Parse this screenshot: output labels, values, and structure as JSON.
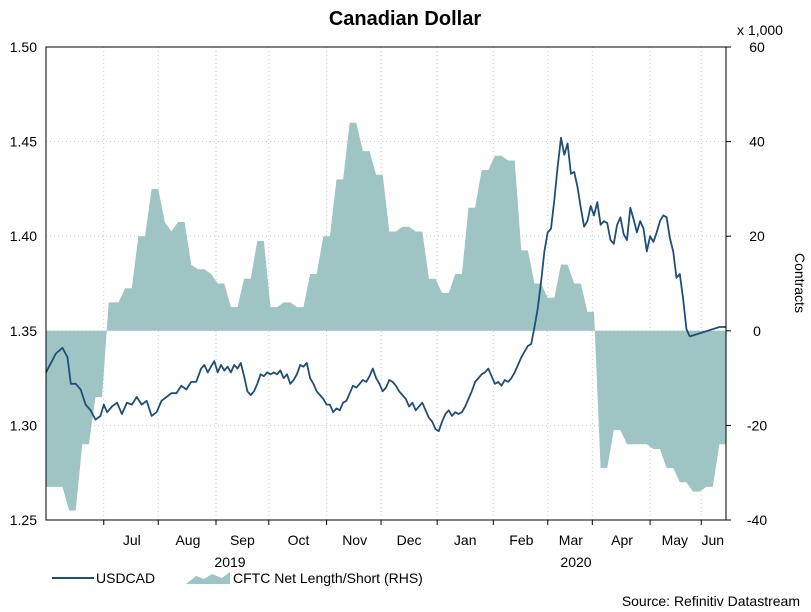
{
  "chart_data": {
    "type": "line+area",
    "title": "Canadian Dollar",
    "source": "Source: Refinitiv Datastream",
    "x_axis": {
      "months": [
        "Jul",
        "Aug",
        "Sep",
        "Oct",
        "Nov",
        "Dec",
        "Jan",
        "Feb",
        "Mar",
        "Apr",
        "May",
        "Jun"
      ],
      "years": [
        "2019",
        "2020"
      ]
    },
    "y_left": {
      "min": 1.25,
      "max": 1.5,
      "ticks": [
        "1.25",
        "1.30",
        "1.35",
        "1.40",
        "1.45",
        "1.50"
      ]
    },
    "y_right": {
      "min": -40,
      "max": 60,
      "ticks": [
        "-40",
        "-20",
        "0",
        "20",
        "40",
        "60"
      ],
      "unit_label": "x 1,000",
      "label": "Contracts"
    },
    "legend": {
      "line_label": "USDCAD",
      "area_label": "CFTC Net Length/Short (RHS)"
    },
    "colors": {
      "line": "#1f4e79",
      "area": "#9ec4c4",
      "grid": "#c8c8c8"
    },
    "series": [
      {
        "name": "USDCAD",
        "axis": "left",
        "t": [
          0,
          1,
          2,
          3,
          4,
          5,
          6,
          7,
          8,
          9,
          10,
          11,
          12,
          13,
          14,
          15,
          16,
          17,
          18,
          19,
          20,
          21,
          22,
          23,
          24,
          25,
          26,
          27,
          28,
          29,
          30,
          31,
          32,
          33,
          34,
          35,
          36,
          37,
          38,
          39,
          40,
          41,
          42,
          43,
          44,
          45,
          46,
          47,
          48,
          49,
          50,
          51,
          52,
          53,
          54,
          55,
          56,
          57,
          58,
          59,
          60,
          61,
          62,
          63,
          64,
          65,
          66,
          67,
          68,
          69,
          70,
          71,
          72,
          73,
          74,
          75,
          76,
          77,
          78,
          79,
          80,
          81,
          82,
          83,
          84,
          85,
          86,
          87,
          88,
          89,
          90,
          91,
          92,
          93,
          94,
          95,
          96,
          97,
          98,
          99,
          100,
          101,
          102,
          103,
          104,
          105,
          106,
          107,
          108,
          109,
          110,
          111,
          112,
          113,
          114,
          115,
          116,
          117,
          118,
          119,
          120,
          121,
          122,
          123,
          124,
          125,
          126,
          127,
          128,
          129,
          130,
          131,
          132,
          133,
          134,
          135,
          136,
          137,
          138,
          139,
          140,
          141,
          142,
          143,
          144,
          145,
          146,
          147,
          148,
          149,
          150,
          151,
          152,
          153,
          154,
          155,
          156,
          157,
          158,
          159,
          160,
          161,
          162,
          163,
          164,
          165,
          166,
          167,
          168,
          169,
          170,
          171,
          172,
          173,
          174,
          175,
          176,
          177,
          178,
          179,
          180,
          181,
          182,
          183,
          184,
          185,
          186,
          187,
          188,
          189,
          190,
          191,
          192,
          193,
          194,
          195,
          196,
          197,
          198,
          199,
          200,
          201,
          202,
          203,
          204,
          205,
          206,
          207,
          208,
          209,
          210,
          211,
          212,
          213,
          214,
          215,
          216,
          217,
          218,
          219,
          220,
          221,
          222,
          223,
          224,
          225,
          226,
          227,
          228,
          229,
          230,
          231,
          232,
          233,
          234,
          235,
          236,
          237,
          238,
          239,
          240,
          241,
          242,
          243,
          244,
          245,
          246,
          247,
          248,
          249,
          250,
          251,
          252,
          253,
          254,
          255,
          256,
          257,
          258,
          259,
          260,
          261,
          262,
          263,
          264,
          265,
          266,
          267,
          268,
          269,
          270,
          271,
          272,
          273,
          274,
          275,
          276,
          277,
          278,
          279,
          280,
          281,
          282,
          283,
          284,
          285,
          286,
          287,
          288,
          289,
          290,
          291,
          292,
          293,
          294,
          295,
          296,
          297,
          298,
          299,
          300,
          301,
          302,
          303,
          304,
          305,
          306,
          307,
          308,
          309,
          310,
          311,
          312,
          313,
          314,
          315,
          316,
          317,
          318,
          319,
          320,
          321,
          322,
          323,
          324,
          325,
          326,
          327,
          328,
          329,
          330,
          331,
          332,
          333,
          334,
          335,
          336,
          337,
          338,
          339,
          340,
          341,
          342,
          343,
          344,
          345,
          346,
          347,
          348,
          349,
          350,
          351,
          352,
          353,
          354,
          355,
          356,
          357,
          358,
          359,
          360,
          361,
          362,
          363,
          364,
          365,
          366,
          367,
          368,
          369,
          370,
          371,
          372,
          373,
          374,
          375,
          376,
          377,
          378,
          379,
          380,
          381,
          382,
          383,
          384,
          385,
          386,
          387,
          388,
          389,
          390
        ],
        "values": []
      },
      {
        "name": "CFTC Net Length/Short (RHS)",
        "axis": "right",
        "values": []
      }
    ],
    "usdcad": [
      [
        0,
        1.328
      ],
      [
        6,
        1.338
      ],
      [
        10,
        1.341
      ],
      [
        13,
        1.336
      ],
      [
        15,
        1.322
      ],
      [
        18,
        1.322
      ],
      [
        21,
        1.319
      ],
      [
        24,
        1.311
      ],
      [
        27,
        1.308
      ],
      [
        30,
        1.303
      ],
      [
        33,
        1.305
      ],
      [
        35,
        1.311
      ],
      [
        37,
        1.307
      ],
      [
        40,
        1.31
      ],
      [
        43,
        1.312
      ],
      [
        46,
        1.306
      ],
      [
        49,
        1.312
      ],
      [
        52,
        1.311
      ],
      [
        55,
        1.315
      ],
      [
        58,
        1.311
      ],
      [
        61,
        1.313
      ],
      [
        64,
        1.305
      ],
      [
        67,
        1.307
      ],
      [
        70,
        1.313
      ],
      [
        73,
        1.315
      ],
      [
        76,
        1.317
      ],
      [
        79,
        1.317
      ],
      [
        82,
        1.321
      ],
      [
        85,
        1.319
      ],
      [
        88,
        1.323
      ],
      [
        91,
        1.323
      ],
      [
        94,
        1.33
      ],
      [
        96,
        1.332
      ],
      [
        98,
        1.328
      ],
      [
        100,
        1.331
      ],
      [
        102,
        1.334
      ],
      [
        104,
        1.328
      ],
      [
        106,
        1.332
      ],
      [
        108,
        1.329
      ],
      [
        110,
        1.331
      ],
      [
        112,
        1.328
      ],
      [
        114,
        1.332
      ],
      [
        116,
        1.33
      ],
      [
        118,
        1.333
      ],
      [
        120,
        1.326
      ],
      [
        122,
        1.318
      ],
      [
        124,
        1.316
      ],
      [
        126,
        1.318
      ],
      [
        128,
        1.322
      ],
      [
        130,
        1.327
      ],
      [
        132,
        1.326
      ],
      [
        134,
        1.328
      ],
      [
        136,
        1.327
      ],
      [
        138,
        1.328
      ],
      [
        140,
        1.327
      ],
      [
        142,
        1.329
      ],
      [
        144,
        1.325
      ],
      [
        146,
        1.327
      ],
      [
        148,
        1.322
      ],
      [
        150,
        1.324
      ],
      [
        152,
        1.327
      ],
      [
        154,
        1.332
      ],
      [
        156,
        1.331
      ],
      [
        158,
        1.333
      ],
      [
        160,
        1.325
      ],
      [
        162,
        1.322
      ],
      [
        164,
        1.318
      ],
      [
        166,
        1.316
      ],
      [
        168,
        1.314
      ],
      [
        170,
        1.311
      ],
      [
        172,
        1.311
      ],
      [
        174,
        1.307
      ],
      [
        176,
        1.309
      ],
      [
        178,
        1.308
      ],
      [
        180,
        1.312
      ],
      [
        182,
        1.313
      ],
      [
        184,
        1.317
      ],
      [
        186,
        1.321
      ],
      [
        188,
        1.32
      ],
      [
        190,
        1.322
      ],
      [
        192,
        1.324
      ],
      [
        194,
        1.323
      ],
      [
        196,
        1.326
      ],
      [
        198,
        1.33
      ],
      [
        200,
        1.325
      ],
      [
        202,
        1.322
      ],
      [
        204,
        1.318
      ],
      [
        206,
        1.32
      ],
      [
        208,
        1.324
      ],
      [
        210,
        1.323
      ],
      [
        212,
        1.321
      ],
      [
        214,
        1.318
      ],
      [
        216,
        1.316
      ],
      [
        218,
        1.314
      ],
      [
        220,
        1.31
      ],
      [
        222,
        1.312
      ],
      [
        224,
        1.308
      ],
      [
        226,
        1.31
      ],
      [
        228,
        1.312
      ],
      [
        230,
        1.308
      ],
      [
        232,
        1.304
      ],
      [
        234,
        1.302
      ],
      [
        236,
        1.298
      ],
      [
        238,
        1.297
      ],
      [
        240,
        1.302
      ],
      [
        242,
        1.306
      ],
      [
        244,
        1.308
      ],
      [
        246,
        1.305
      ],
      [
        248,
        1.307
      ],
      [
        250,
        1.306
      ],
      [
        252,
        1.307
      ],
      [
        254,
        1.31
      ],
      [
        256,
        1.314
      ],
      [
        258,
        1.318
      ],
      [
        260,
        1.323
      ],
      [
        262,
        1.325
      ],
      [
        264,
        1.327
      ],
      [
        266,
        1.328
      ],
      [
        268,
        1.33
      ],
      [
        270,
        1.326
      ],
      [
        272,
        1.322
      ],
      [
        274,
        1.323
      ],
      [
        276,
        1.321
      ],
      [
        278,
        1.324
      ],
      [
        280,
        1.323
      ],
      [
        282,
        1.325
      ],
      [
        284,
        1.328
      ],
      [
        286,
        1.332
      ],
      [
        288,
        1.336
      ],
      [
        290,
        1.339
      ],
      [
        292,
        1.342
      ],
      [
        294,
        1.343
      ],
      [
        296,
        1.352
      ],
      [
        298,
        1.362
      ],
      [
        300,
        1.376
      ],
      [
        302,
        1.392
      ],
      [
        304,
        1.402
      ],
      [
        306,
        1.404
      ],
      [
        308,
        1.419
      ],
      [
        310,
        1.437
      ],
      [
        312,
        1.452
      ],
      [
        314,
        1.443
      ],
      [
        316,
        1.449
      ],
      [
        318,
        1.433
      ],
      [
        320,
        1.434
      ],
      [
        322,
        1.426
      ],
      [
        324,
        1.415
      ],
      [
        326,
        1.405
      ],
      [
        328,
        1.408
      ],
      [
        330,
        1.416
      ],
      [
        332,
        1.411
      ],
      [
        334,
        1.418
      ],
      [
        336,
        1.406
      ],
      [
        338,
        1.408
      ],
      [
        340,
        1.407
      ],
      [
        342,
        1.398
      ],
      [
        344,
        1.396
      ],
      [
        346,
        1.406
      ],
      [
        348,
        1.41
      ],
      [
        350,
        1.401
      ],
      [
        352,
        1.398
      ],
      [
        354,
        1.415
      ],
      [
        356,
        1.409
      ],
      [
        358,
        1.402
      ],
      [
        360,
        1.408
      ],
      [
        362,
        1.404
      ],
      [
        364,
        1.392
      ],
      [
        366,
        1.4
      ],
      [
        368,
        1.397
      ],
      [
        370,
        1.402
      ],
      [
        372,
        1.408
      ],
      [
        374,
        1.411
      ],
      [
        376,
        1.41
      ],
      [
        378,
        1.399
      ],
      [
        380,
        1.392
      ],
      [
        382,
        1.378
      ],
      [
        384,
        1.38
      ],
      [
        386,
        1.367
      ],
      [
        388,
        1.351
      ],
      [
        390,
        1.347
      ]
    ],
    "cftc": [
      [
        0,
        -33
      ],
      [
        10,
        -33
      ],
      [
        14,
        -38
      ],
      [
        18,
        -38
      ],
      [
        22,
        -24
      ],
      [
        26,
        -24
      ],
      [
        30,
        -14
      ],
      [
        34,
        -14
      ],
      [
        38,
        6
      ],
      [
        44,
        6
      ],
      [
        48,
        9
      ],
      [
        52,
        9
      ],
      [
        56,
        20
      ],
      [
        60,
        20
      ],
      [
        64,
        30
      ],
      [
        68,
        30
      ],
      [
        72,
        23
      ],
      [
        76,
        21
      ],
      [
        80,
        23
      ],
      [
        84,
        23
      ],
      [
        88,
        14
      ],
      [
        92,
        13
      ],
      [
        96,
        13
      ],
      [
        100,
        12
      ],
      [
        104,
        10
      ],
      [
        108,
        10
      ],
      [
        112,
        5
      ],
      [
        116,
        5
      ],
      [
        120,
        11
      ],
      [
        124,
        11
      ],
      [
        128,
        19
      ],
      [
        132,
        19
      ],
      [
        136,
        5
      ],
      [
        140,
        5
      ],
      [
        144,
        6
      ],
      [
        148,
        6
      ],
      [
        152,
        5
      ],
      [
        156,
        5
      ],
      [
        160,
        12
      ],
      [
        164,
        12
      ],
      [
        168,
        20
      ],
      [
        172,
        20
      ],
      [
        176,
        32
      ],
      [
        180,
        32
      ],
      [
        184,
        44
      ],
      [
        188,
        44
      ],
      [
        192,
        38
      ],
      [
        196,
        38
      ],
      [
        200,
        33
      ],
      [
        204,
        33
      ],
      [
        208,
        21
      ],
      [
        212,
        21
      ],
      [
        216,
        22
      ],
      [
        220,
        22
      ],
      [
        224,
        21
      ],
      [
        228,
        21
      ],
      [
        232,
        11
      ],
      [
        236,
        11
      ],
      [
        240,
        8
      ],
      [
        244,
        8
      ],
      [
        248,
        12
      ],
      [
        252,
        12
      ],
      [
        256,
        26
      ],
      [
        260,
        26
      ],
      [
        264,
        34
      ],
      [
        268,
        34
      ],
      [
        272,
        37
      ],
      [
        276,
        37
      ],
      [
        280,
        36
      ],
      [
        284,
        36
      ],
      [
        288,
        17
      ],
      [
        292,
        17
      ],
      [
        296,
        10
      ],
      [
        300,
        10
      ],
      [
        304,
        7
      ],
      [
        308,
        7
      ],
      [
        312,
        14
      ],
      [
        316,
        14
      ],
      [
        320,
        10
      ],
      [
        324,
        10
      ],
      [
        328,
        4
      ],
      [
        332,
        4
      ],
      [
        336,
        -29
      ],
      [
        340,
        -29
      ],
      [
        344,
        -21
      ],
      [
        348,
        -21
      ],
      [
        352,
        -24
      ],
      [
        356,
        -24
      ],
      [
        360,
        -24
      ],
      [
        364,
        -24
      ],
      [
        368,
        -25
      ],
      [
        372,
        -25
      ],
      [
        376,
        -29
      ],
      [
        380,
        -29
      ],
      [
        384,
        -32
      ],
      [
        388,
        -32
      ],
      [
        392,
        -34
      ],
      [
        396,
        -34
      ],
      [
        400,
        -33
      ],
      [
        404,
        -33
      ],
      [
        408,
        -24
      ],
      [
        412,
        -24
      ]
    ]
  }
}
